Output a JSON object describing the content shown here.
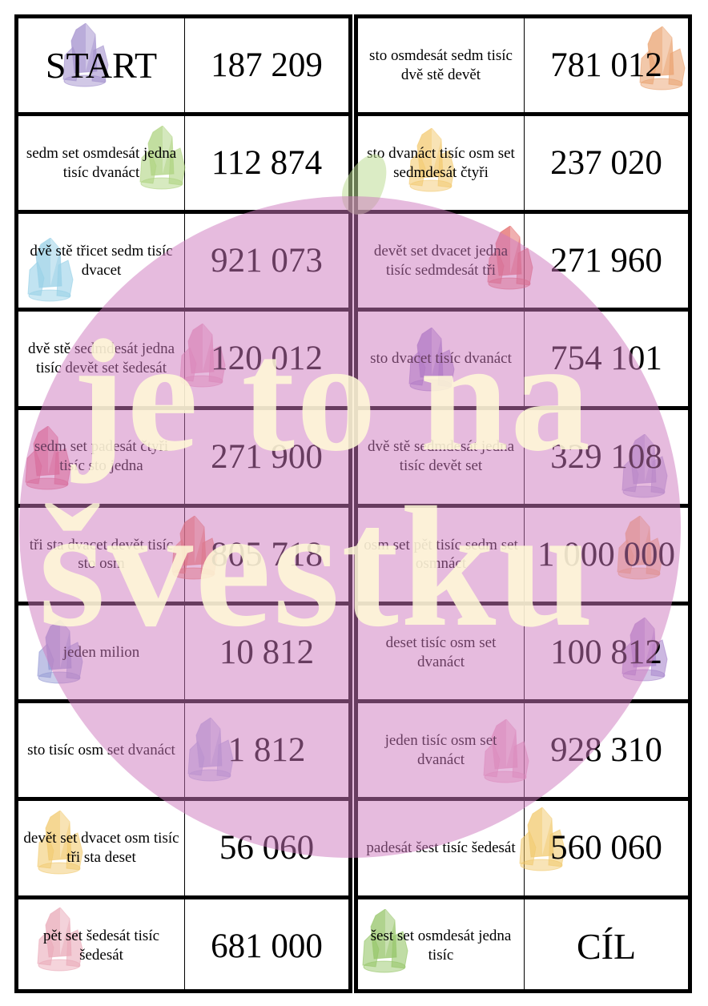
{
  "left": [
    {
      "text": "START",
      "number": "187 209",
      "crystal": "#9a86c8"
    },
    {
      "text": "sedm set osmdesát jedna tisíc dvanáct",
      "number": "112 874",
      "crystal": "#a6cf73"
    },
    {
      "text": "dvě stě třicet sedm tisíc dvacet",
      "number": "921 073",
      "crystal": "#8ccbe4"
    },
    {
      "text": "dvě stě sedmdesát jedna tisíc devět set šedesát",
      "number": "120 012",
      "crystal": "#e68fb0"
    },
    {
      "text": "sedm set padesát čtyři tisíc sto jedna",
      "number": "271 900",
      "crystal": "#e05670"
    },
    {
      "text": "tři sta dvacet devět tisíc sto osm",
      "number": "805 718",
      "crystal": "#ea6a4a"
    },
    {
      "text": "jeden milion",
      "number": "10 812",
      "crystal": "#8a8fd0"
    },
    {
      "text": "sto tisíc osm set dvanáct",
      "number": "1 812",
      "crystal": "#9fa3dc"
    },
    {
      "text": "devět set dvacet osm tisíc tři sta deset",
      "number": "56 060",
      "crystal": "#f0c460"
    },
    {
      "text": "pět set šedesát tisíc šedesát",
      "number": "681 000",
      "crystal": "#e7a0b0"
    }
  ],
  "right": [
    {
      "text": "sto osmdesát sedm tisíc dvě stě devět",
      "number": "781 012",
      "crystal": "#e89a62"
    },
    {
      "text": "sto dvanáct tisíc osm set sedmdesát čtyři",
      "number": "237 020",
      "crystal": "#f2c463"
    },
    {
      "text": "devět set dvacet jedna tisíc sedmdesát tři",
      "number": "271 960",
      "crystal": "#e05a5a"
    },
    {
      "text": "sto dvacet tisíc dvanáct",
      "number": "754 101",
      "crystal": "#8a6fc8"
    },
    {
      "text": "dvě stě sedmdesát jedna tisíc devět set",
      "number": "329 108",
      "crystal": "#9c8fcf"
    },
    {
      "text": "osm set pět tisíc sedm set osmnáct",
      "number": "1 000 000",
      "crystal": "#f0a45a"
    },
    {
      "text": "deset tisíc osm set dvanáct",
      "number": "100 812",
      "crystal": "#a07cc8"
    },
    {
      "text": "jeden tisíc osm set dvanáct",
      "number": "928 310",
      "crystal": "#e898b8"
    },
    {
      "text": "padesát šest tisíc šedesát",
      "number": "560 060",
      "crystal": "#f0c460"
    },
    {
      "text": "šest set osmdesát jedna tisíc",
      "number": "CÍL",
      "crystal": "#8bbf58"
    }
  ],
  "watermark": {
    "line1": "je to na",
    "line2": "švestku",
    "circle_color": "#e6b8dc",
    "text_color": "#fff8d8"
  }
}
